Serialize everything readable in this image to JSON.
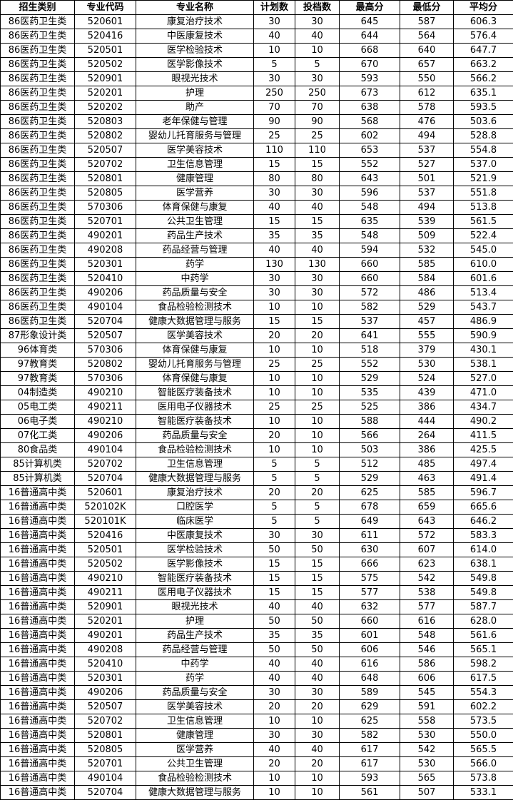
{
  "table": {
    "header": [
      "招生类别",
      "专业代码",
      "专业名称",
      "计划数",
      "投档数",
      "最高分",
      "最低分",
      "平均分"
    ],
    "rows": [
      [
        "86医药卫生类",
        "520601",
        "康复治疗技术",
        "30",
        "30",
        "645",
        "587",
        "606.3"
      ],
      [
        "86医药卫生类",
        "520416",
        "中医康复技术",
        "40",
        "40",
        "644",
        "564",
        "576.4"
      ],
      [
        "86医药卫生类",
        "520501",
        "医学检验技术",
        "10",
        "10",
        "668",
        "640",
        "647.7"
      ],
      [
        "86医药卫生类",
        "520502",
        "医学影像技术",
        "5",
        "5",
        "670",
        "657",
        "663.2"
      ],
      [
        "86医药卫生类",
        "520901",
        "眼视光技术",
        "30",
        "30",
        "593",
        "550",
        "566.2"
      ],
      [
        "86医药卫生类",
        "520201",
        "护理",
        "250",
        "250",
        "673",
        "612",
        "635.1"
      ],
      [
        "86医药卫生类",
        "520202",
        "助产",
        "70",
        "70",
        "638",
        "578",
        "593.5"
      ],
      [
        "86医药卫生类",
        "520803",
        "老年保健与管理",
        "90",
        "90",
        "568",
        "476",
        "503.6"
      ],
      [
        "86医药卫生类",
        "520802",
        "婴幼儿托育服务与管理",
        "25",
        "25",
        "602",
        "494",
        "528.8"
      ],
      [
        "86医药卫生类",
        "520507",
        "医学美容技术",
        "110",
        "110",
        "653",
        "537",
        "554.8"
      ],
      [
        "86医药卫生类",
        "520702",
        "卫生信息管理",
        "15",
        "15",
        "552",
        "527",
        "537.0"
      ],
      [
        "86医药卫生类",
        "520801",
        "健康管理",
        "80",
        "80",
        "643",
        "501",
        "521.9"
      ],
      [
        "86医药卫生类",
        "520805",
        "医学营养",
        "30",
        "30",
        "596",
        "537",
        "551.8"
      ],
      [
        "86医药卫生类",
        "570306",
        "体育保健与康复",
        "40",
        "40",
        "548",
        "494",
        "513.8"
      ],
      [
        "86医药卫生类",
        "520701",
        "公共卫生管理",
        "15",
        "15",
        "635",
        "539",
        "561.5"
      ],
      [
        "86医药卫生类",
        "490201",
        "药品生产技术",
        "35",
        "35",
        "548",
        "509",
        "522.4"
      ],
      [
        "86医药卫生类",
        "490208",
        "药品经营与管理",
        "40",
        "40",
        "594",
        "532",
        "545.0"
      ],
      [
        "86医药卫生类",
        "520301",
        "药学",
        "130",
        "130",
        "660",
        "585",
        "610.0"
      ],
      [
        "86医药卫生类",
        "520410",
        "中药学",
        "30",
        "30",
        "660",
        "584",
        "601.6"
      ],
      [
        "86医药卫生类",
        "490206",
        "药品质量与安全",
        "30",
        "30",
        "572",
        "486",
        "513.4"
      ],
      [
        "86医药卫生类",
        "490104",
        "食品检验检测技术",
        "10",
        "10",
        "582",
        "529",
        "543.7"
      ],
      [
        "86医药卫生类",
        "520704",
        "健康大数据管理与服务",
        "15",
        "15",
        "537",
        "457",
        "486.9"
      ],
      [
        "87形象设计类",
        "520507",
        "医学美容技术",
        "20",
        "20",
        "641",
        "555",
        "590.9"
      ],
      [
        "96体育类",
        "570306",
        "体育保健与康复",
        "10",
        "10",
        "518",
        "379",
        "430.1"
      ],
      [
        "97教育类",
        "520802",
        "婴幼儿托育服务与管理",
        "25",
        "25",
        "552",
        "530",
        "538.1"
      ],
      [
        "97教育类",
        "570306",
        "体育保健与康复",
        "10",
        "10",
        "529",
        "524",
        "527.0"
      ],
      [
        "04制造类",
        "490210",
        "智能医疗装备技术",
        "10",
        "10",
        "535",
        "439",
        "471.0"
      ],
      [
        "05电工类",
        "490211",
        "医用电子仪器技术",
        "25",
        "25",
        "525",
        "386",
        "434.7"
      ],
      [
        "06电子类",
        "490210",
        "智能医疗装备技术",
        "10",
        "10",
        "588",
        "444",
        "490.2"
      ],
      [
        "07化工类",
        "490206",
        "药品质量与安全",
        "20",
        "10",
        "566",
        "264",
        "411.5"
      ],
      [
        "80食品类",
        "490104",
        "食品检验检测技术",
        "10",
        "10",
        "503",
        "386",
        "425.5"
      ],
      [
        "85计算机类",
        "520702",
        "卫生信息管理",
        "5",
        "5",
        "512",
        "485",
        "497.4"
      ],
      [
        "85计算机类",
        "520704",
        "健康大数据管理与服务",
        "5",
        "5",
        "529",
        "463",
        "491.4"
      ],
      [
        "16普通高中类",
        "520601",
        "康复治疗技术",
        "20",
        "20",
        "625",
        "585",
        "596.7"
      ],
      [
        "16普通高中类",
        "520102K",
        "口腔医学",
        "5",
        "5",
        "678",
        "659",
        "665.6"
      ],
      [
        "16普通高中类",
        "520101K",
        "临床医学",
        "5",
        "5",
        "649",
        "643",
        "646.2"
      ],
      [
        "16普通高中类",
        "520416",
        "中医康复技术",
        "30",
        "30",
        "611",
        "572",
        "583.3"
      ],
      [
        "16普通高中类",
        "520501",
        "医学检验技术",
        "50",
        "50",
        "630",
        "607",
        "614.0"
      ],
      [
        "16普通高中类",
        "520502",
        "医学影像技术",
        "15",
        "15",
        "666",
        "623",
        "638.1"
      ],
      [
        "16普通高中类",
        "490210",
        "智能医疗装备技术",
        "15",
        "15",
        "575",
        "542",
        "549.8"
      ],
      [
        "16普通高中类",
        "490211",
        "医用电子仪器技术",
        "15",
        "15",
        "577",
        "538",
        "549.8"
      ],
      [
        "16普通高中类",
        "520901",
        "眼视光技术",
        "40",
        "40",
        "632",
        "577",
        "587.7"
      ],
      [
        "16普通高中类",
        "520201",
        "护理",
        "50",
        "50",
        "660",
        "616",
        "628.0"
      ],
      [
        "16普通高中类",
        "490201",
        "药品生产技术",
        "35",
        "35",
        "601",
        "548",
        "561.6"
      ],
      [
        "16普通高中类",
        "490208",
        "药品经营与管理",
        "50",
        "50",
        "606",
        "546",
        "565.1"
      ],
      [
        "16普通高中类",
        "520410",
        "中药学",
        "40",
        "40",
        "616",
        "586",
        "598.2"
      ],
      [
        "16普通高中类",
        "520301",
        "药学",
        "40",
        "40",
        "648",
        "606",
        "617.5"
      ],
      [
        "16普通高中类",
        "490206",
        "药品质量与安全",
        "30",
        "30",
        "589",
        "545",
        "554.3"
      ],
      [
        "16普通高中类",
        "520507",
        "医学美容技术",
        "20",
        "20",
        "629",
        "591",
        "602.2"
      ],
      [
        "16普通高中类",
        "520702",
        "卫生信息管理",
        "10",
        "10",
        "625",
        "558",
        "573.5"
      ],
      [
        "16普通高中类",
        "520801",
        "健康管理",
        "30",
        "30",
        "582",
        "530",
        "550.0"
      ],
      [
        "16普通高中类",
        "520805",
        "医学营养",
        "40",
        "40",
        "617",
        "542",
        "565.5"
      ],
      [
        "16普通高中类",
        "520701",
        "公共卫生管理",
        "20",
        "20",
        "617",
        "530",
        "566.0"
      ],
      [
        "16普通高中类",
        "490104",
        "食品检验检测技术",
        "10",
        "10",
        "593",
        "565",
        "573.8"
      ],
      [
        "16普通高中类",
        "520704",
        "健康大数据管理与服务",
        "10",
        "10",
        "561",
        "507",
        "533.1"
      ]
    ]
  }
}
